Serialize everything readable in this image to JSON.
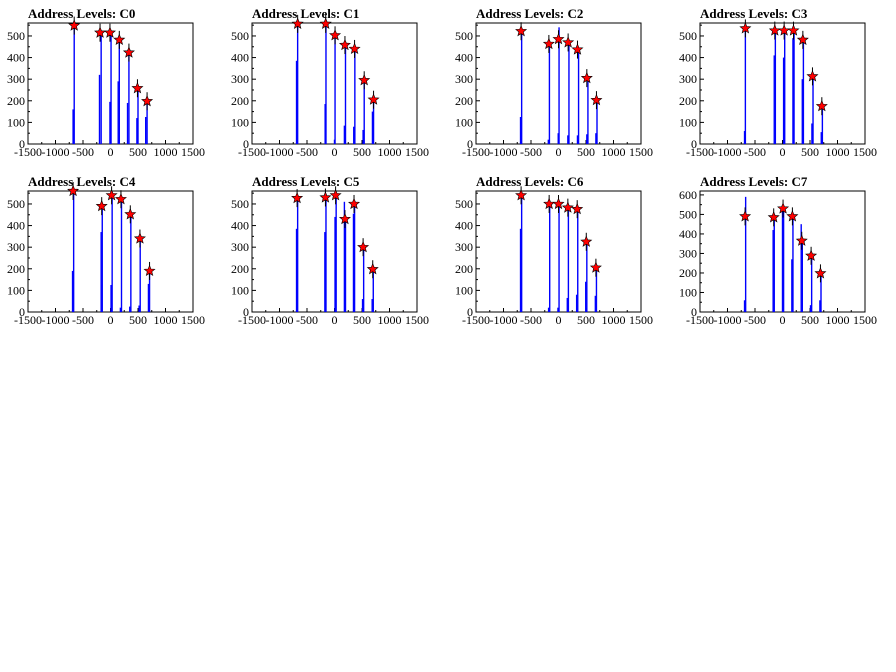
{
  "chart_data": [
    {
      "type": "bar",
      "title": "Address Levels: C0",
      "xlim": [
        -1500,
        1500
      ],
      "ylim": [
        0,
        560
      ],
      "xticks": [
        -1500,
        -1000,
        -500,
        0,
        500,
        1000,
        1500
      ],
      "yticks": [
        0,
        100,
        200,
        300,
        400,
        500
      ],
      "bars": [
        {
          "x": -680,
          "y": 160
        },
        {
          "x": -660,
          "y": 540
        },
        {
          "x": -200,
          "y": 320
        },
        {
          "x": -170,
          "y": 500
        },
        {
          "x": -10,
          "y": 195
        },
        {
          "x": 10,
          "y": 510
        },
        {
          "x": 140,
          "y": 290
        },
        {
          "x": 160,
          "y": 475
        },
        {
          "x": 310,
          "y": 190
        },
        {
          "x": 335,
          "y": 420
        },
        {
          "x": 480,
          "y": 120
        },
        {
          "x": 500,
          "y": 270
        },
        {
          "x": 640,
          "y": 125
        },
        {
          "x": 665,
          "y": 195
        }
      ],
      "markers": [
        {
          "x": -660,
          "y": 548
        },
        {
          "x": -190,
          "y": 515
        },
        {
          "x": -10,
          "y": 515
        },
        {
          "x": 160,
          "y": 482
        },
        {
          "x": 335,
          "y": 423
        },
        {
          "x": 490,
          "y": 258
        },
        {
          "x": 665,
          "y": 198
        }
      ]
    },
    {
      "type": "bar",
      "title": "Address Levels: C1",
      "xlim": [
        -1500,
        1500
      ],
      "ylim": [
        0,
        560
      ],
      "xticks": [
        -1500,
        -1000,
        -500,
        0,
        500,
        1000,
        1500
      ],
      "yticks": [
        0,
        100,
        200,
        300,
        400,
        500
      ],
      "bars": [
        {
          "x": -690,
          "y": 385
        },
        {
          "x": -670,
          "y": 560
        },
        {
          "x": -170,
          "y": 185
        },
        {
          "x": -155,
          "y": 555
        },
        {
          "x": 0,
          "y": 20
        },
        {
          "x": 10,
          "y": 510
        },
        {
          "x": 180,
          "y": 85
        },
        {
          "x": 200,
          "y": 470
        },
        {
          "x": 350,
          "y": 80
        },
        {
          "x": 370,
          "y": 450
        },
        {
          "x": 520,
          "y": 65
        },
        {
          "x": 540,
          "y": 300
        },
        {
          "x": 690,
          "y": 150
        },
        {
          "x": 710,
          "y": 215
        }
      ],
      "markers": [
        {
          "x": -670,
          "y": 556
        },
        {
          "x": -160,
          "y": 556
        },
        {
          "x": 10,
          "y": 503
        },
        {
          "x": 190,
          "y": 458
        },
        {
          "x": 365,
          "y": 440
        },
        {
          "x": 540,
          "y": 295
        },
        {
          "x": 710,
          "y": 205
        }
      ]
    },
    {
      "type": "bar",
      "title": "Address Levels: C2",
      "xlim": [
        -1500,
        1500
      ],
      "ylim": [
        0,
        560
      ],
      "xticks": [
        -1500,
        -1000,
        -500,
        0,
        500,
        1000,
        1500
      ],
      "yticks": [
        0,
        100,
        200,
        300,
        400,
        500
      ],
      "bars": [
        {
          "x": -690,
          "y": 125
        },
        {
          "x": -670,
          "y": 530
        },
        {
          "x": -185,
          "y": 20
        },
        {
          "x": -165,
          "y": 470
        },
        {
          "x": -5,
          "y": 50
        },
        {
          "x": 10,
          "y": 540
        },
        {
          "x": 170,
          "y": 40
        },
        {
          "x": 190,
          "y": 475
        },
        {
          "x": 345,
          "y": 40
        },
        {
          "x": 365,
          "y": 440
        },
        {
          "x": 515,
          "y": 45
        },
        {
          "x": 535,
          "y": 310
        },
        {
          "x": 680,
          "y": 50
        },
        {
          "x": 700,
          "y": 215
        }
      ],
      "markers": [
        {
          "x": -680,
          "y": 522
        },
        {
          "x": -175,
          "y": 463
        },
        {
          "x": 0,
          "y": 485
        },
        {
          "x": 175,
          "y": 470
        },
        {
          "x": 345,
          "y": 437
        },
        {
          "x": 515,
          "y": 305
        },
        {
          "x": 690,
          "y": 203
        }
      ]
    },
    {
      "type": "bar",
      "title": "Address Levels: C3",
      "xlim": [
        -1500,
        1500
      ],
      "ylim": [
        0,
        560
      ],
      "xticks": [
        -1500,
        -1000,
        -500,
        0,
        500,
        1000,
        1500
      ],
      "yticks": [
        0,
        100,
        200,
        300,
        400,
        500
      ],
      "bars": [
        {
          "x": -690,
          "y": 60
        },
        {
          "x": -675,
          "y": 540
        },
        {
          "x": -150,
          "y": 410
        },
        {
          "x": -130,
          "y": 530
        },
        {
          "x": 20,
          "y": 400
        },
        {
          "x": 40,
          "y": 535
        },
        {
          "x": 190,
          "y": 490
        },
        {
          "x": 210,
          "y": 525
        },
        {
          "x": 360,
          "y": 300
        },
        {
          "x": 380,
          "y": 490
        },
        {
          "x": 535,
          "y": 95
        },
        {
          "x": 555,
          "y": 315
        },
        {
          "x": 705,
          "y": 55
        },
        {
          "x": 725,
          "y": 180
        }
      ],
      "markers": [
        {
          "x": -675,
          "y": 535
        },
        {
          "x": -140,
          "y": 525
        },
        {
          "x": 30,
          "y": 525
        },
        {
          "x": 200,
          "y": 525
        },
        {
          "x": 370,
          "y": 482
        },
        {
          "x": 545,
          "y": 313
        },
        {
          "x": 715,
          "y": 175
        }
      ]
    },
    {
      "type": "bar",
      "title": "Address Levels: C4",
      "xlim": [
        -1500,
        1500
      ],
      "ylim": [
        0,
        560
      ],
      "xticks": [
        -1500,
        -1000,
        -500,
        0,
        500,
        1000,
        1500
      ],
      "yticks": [
        0,
        100,
        200,
        300,
        400,
        500
      ],
      "bars": [
        {
          "x": -690,
          "y": 190
        },
        {
          "x": -670,
          "y": 560
        },
        {
          "x": -170,
          "y": 370
        },
        {
          "x": -150,
          "y": 500
        },
        {
          "x": 10,
          "y": 125
        },
        {
          "x": 30,
          "y": 545
        },
        {
          "x": 180,
          "y": 20
        },
        {
          "x": 200,
          "y": 520
        },
        {
          "x": 350,
          "y": 25
        },
        {
          "x": 370,
          "y": 455
        },
        {
          "x": 520,
          "y": 30
        },
        {
          "x": 540,
          "y": 330
        },
        {
          "x": 690,
          "y": 130
        },
        {
          "x": 710,
          "y": 190
        }
      ],
      "markers": [
        {
          "x": -680,
          "y": 560
        },
        {
          "x": -160,
          "y": 490
        },
        {
          "x": 20,
          "y": 540
        },
        {
          "x": 190,
          "y": 522
        },
        {
          "x": 360,
          "y": 452
        },
        {
          "x": 535,
          "y": 340
        },
        {
          "x": 710,
          "y": 190
        }
      ]
    },
    {
      "type": "bar",
      "title": "Address Levels: C5",
      "xlim": [
        -1500,
        1500
      ],
      "ylim": [
        0,
        560
      ],
      "xticks": [
        -1500,
        -1000,
        -500,
        0,
        500,
        1000,
        1500
      ],
      "yticks": [
        0,
        100,
        200,
        300,
        400,
        500
      ],
      "bars": [
        {
          "x": -690,
          "y": 385
        },
        {
          "x": -670,
          "y": 530
        },
        {
          "x": -175,
          "y": 370
        },
        {
          "x": -155,
          "y": 530
        },
        {
          "x": 10,
          "y": 440
        },
        {
          "x": 30,
          "y": 545
        },
        {
          "x": 180,
          "y": 510
        },
        {
          "x": 200,
          "y": 430
        },
        {
          "x": 345,
          "y": 455
        },
        {
          "x": 365,
          "y": 500
        },
        {
          "x": 510,
          "y": 60
        },
        {
          "x": 530,
          "y": 305
        },
        {
          "x": 685,
          "y": 60
        },
        {
          "x": 705,
          "y": 200
        }
      ],
      "markers": [
        {
          "x": -680,
          "y": 527
        },
        {
          "x": -165,
          "y": 530
        },
        {
          "x": 20,
          "y": 540
        },
        {
          "x": 190,
          "y": 430
        },
        {
          "x": 355,
          "y": 500
        },
        {
          "x": 520,
          "y": 300
        },
        {
          "x": 695,
          "y": 198
        }
      ]
    },
    {
      "type": "bar",
      "title": "Address Levels: C6",
      "xlim": [
        -1500,
        1500
      ],
      "ylim": [
        0,
        560
      ],
      "xticks": [
        -1500,
        -1000,
        -500,
        0,
        500,
        1000,
        1500
      ],
      "yticks": [
        0,
        100,
        200,
        300,
        400,
        500
      ],
      "bars": [
        {
          "x": -690,
          "y": 385
        },
        {
          "x": -670,
          "y": 545
        },
        {
          "x": -180,
          "y": 20
        },
        {
          "x": -160,
          "y": 500
        },
        {
          "x": -10,
          "y": 20
        },
        {
          "x": 10,
          "y": 505
        },
        {
          "x": 160,
          "y": 65
        },
        {
          "x": 180,
          "y": 480
        },
        {
          "x": 330,
          "y": 80
        },
        {
          "x": 350,
          "y": 470
        },
        {
          "x": 495,
          "y": 140
        },
        {
          "x": 515,
          "y": 330
        },
        {
          "x": 670,
          "y": 75
        },
        {
          "x": 690,
          "y": 205
        }
      ],
      "markers": [
        {
          "x": -680,
          "y": 540
        },
        {
          "x": -170,
          "y": 500
        },
        {
          "x": 0,
          "y": 500
        },
        {
          "x": 170,
          "y": 483
        },
        {
          "x": 340,
          "y": 476
        },
        {
          "x": 505,
          "y": 325
        },
        {
          "x": 680,
          "y": 205
        }
      ]
    },
    {
      "type": "bar",
      "title": "Address Levels: C7",
      "xlim": [
        -1500,
        1500
      ],
      "ylim": [
        0,
        620
      ],
      "xticks": [
        -1500,
        -1000,
        -500,
        0,
        500,
        1000,
        1500
      ],
      "yticks": [
        0,
        100,
        200,
        300,
        400,
        500,
        600
      ],
      "bars": [
        {
          "x": -690,
          "y": 60
        },
        {
          "x": -670,
          "y": 590
        },
        {
          "x": -170,
          "y": 420
        },
        {
          "x": -150,
          "y": 500
        },
        {
          "x": 0,
          "y": 520
        },
        {
          "x": 20,
          "y": 535
        },
        {
          "x": 170,
          "y": 270
        },
        {
          "x": 190,
          "y": 500
        },
        {
          "x": 340,
          "y": 450
        },
        {
          "x": 360,
          "y": 370
        },
        {
          "x": 510,
          "y": 35
        },
        {
          "x": 530,
          "y": 295
        },
        {
          "x": 680,
          "y": 60
        },
        {
          "x": 700,
          "y": 205
        }
      ],
      "markers": [
        {
          "x": -680,
          "y": 490
        },
        {
          "x": -160,
          "y": 485
        },
        {
          "x": 10,
          "y": 530
        },
        {
          "x": 180,
          "y": 490
        },
        {
          "x": 350,
          "y": 365
        },
        {
          "x": 520,
          "y": 288
        },
        {
          "x": 690,
          "y": 198
        }
      ]
    }
  ]
}
